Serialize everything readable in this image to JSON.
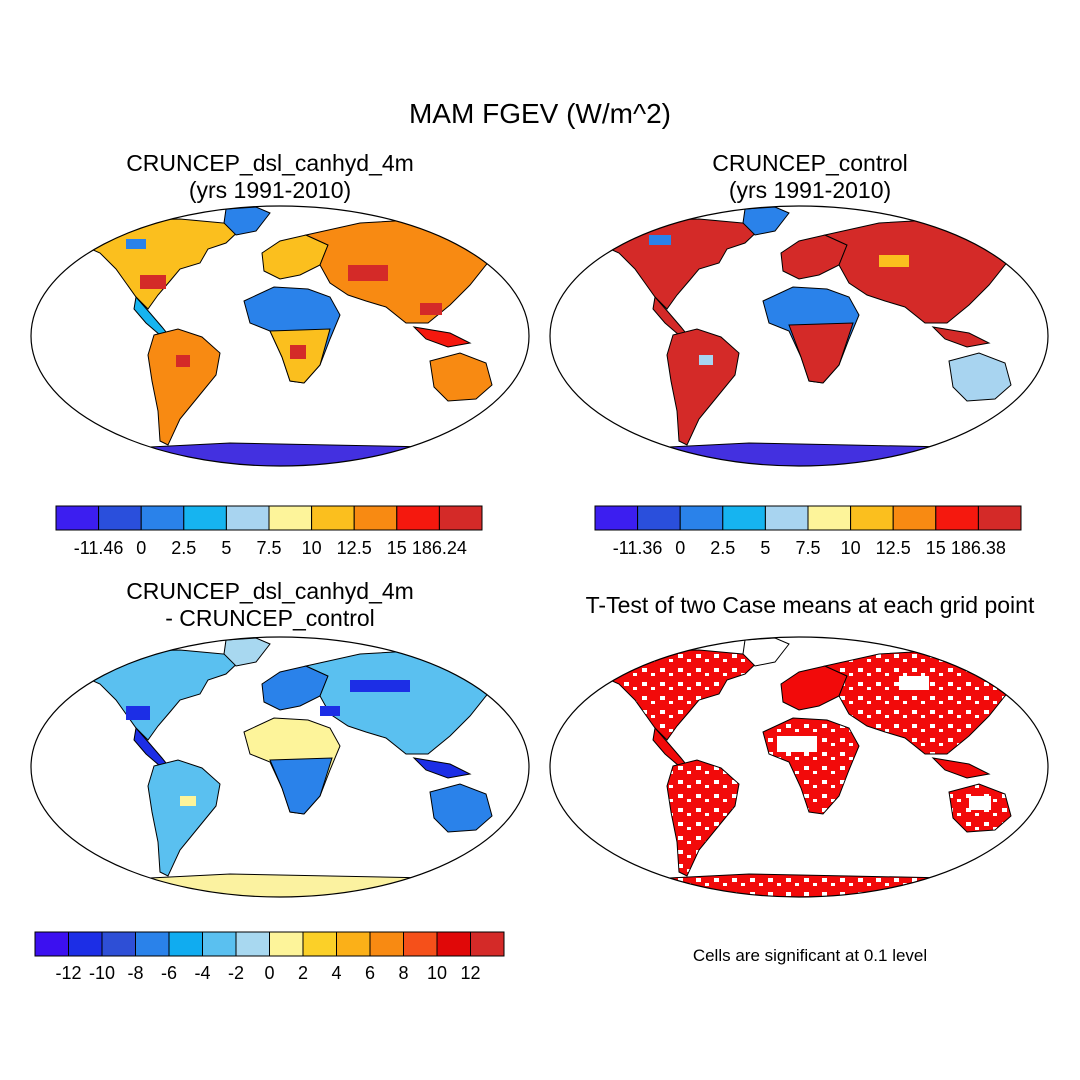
{
  "main_title": "MAM FGEV (W/m^2)",
  "panels": [
    {
      "id": "p1",
      "title_line1": "CRUNCEP_dsl_canhyd_4m",
      "title_line2": "(yrs 1991-2010)"
    },
    {
      "id": "p2",
      "title_line1": "CRUNCEP_control",
      "title_line2": "(yrs 1991-2010)"
    },
    {
      "id": "p3",
      "title_line1": "CRUNCEP_dsl_canhyd_4m",
      "title_line2": "- CRUNCEP_control"
    },
    {
      "id": "p4",
      "title_line1": "T-Test of two Case means at each grid point",
      "title_line2": ""
    }
  ],
  "note": "Cells are significant at 0.1 level",
  "colorbars": {
    "cb1": {
      "colors": [
        "#3c1ef0",
        "#2a4fdc",
        "#2a82ea",
        "#16b4f0",
        "#a8d4f0",
        "#fdf49a",
        "#fbbf1e",
        "#f88a12",
        "#f5180e",
        "#d42a28"
      ],
      "labels": [
        "-11.46",
        "0",
        "2.5",
        "5",
        "7.5",
        "10",
        "12.5",
        "15",
        "186.24"
      ]
    },
    "cb2": {
      "colors": [
        "#3c1ef0",
        "#2a4fdc",
        "#2a82ea",
        "#16b4f0",
        "#a8d4f0",
        "#fdf49a",
        "#fbbf1e",
        "#f88a12",
        "#f5180e",
        "#d42a28"
      ],
      "labels": [
        "-11.36",
        "0",
        "2.5",
        "5",
        "7.5",
        "10",
        "12.5",
        "15",
        "186.38"
      ]
    },
    "cb3": {
      "colors": [
        "#3c10f0",
        "#1c2ee6",
        "#2e4fd6",
        "#2a82ea",
        "#10acf0",
        "#5ac0f0",
        "#a8d8f0",
        "#fdf49a",
        "#fbd028",
        "#fbb018",
        "#f88a12",
        "#f5501a",
        "#e00808",
        "#d42a28"
      ],
      "labels": [
        "-12",
        "-10",
        "-8",
        "-6",
        "-4",
        "-2",
        "0",
        "2",
        "4",
        "6",
        "8",
        "10",
        "12"
      ]
    }
  },
  "map_colors": {
    "ocean": "#ffffff",
    "land_outline": "#000000",
    "significance": "#f20a0a",
    "antarctica_p1": "#4330e0",
    "antarctica_p3": "#fbf2a0"
  }
}
